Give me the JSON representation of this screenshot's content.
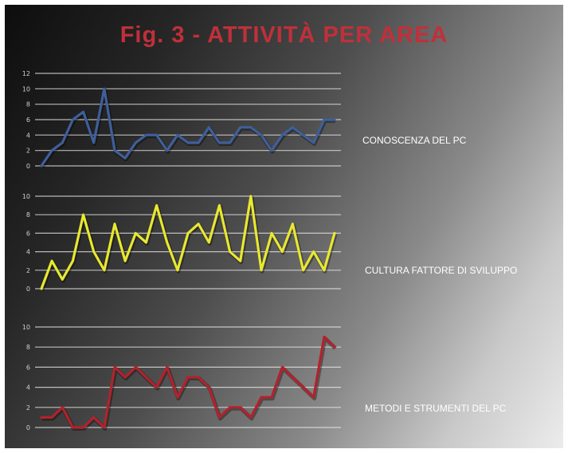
{
  "title": "Fig. 3  -  ATTIVITÀ  PER AREA",
  "chart_data": [
    {
      "type": "line",
      "name": "CONOSCENZA DEL PC",
      "color": "#3f5f9a",
      "ylim": [
        0,
        12
      ],
      "yticks": [
        "0",
        "2",
        "4",
        "6",
        "8",
        "10",
        "12"
      ],
      "grid": true,
      "values": [
        0,
        2,
        3,
        6,
        7,
        3,
        10,
        2,
        1,
        3,
        4,
        4,
        2,
        4,
        3,
        3,
        5,
        3,
        3,
        5,
        5,
        4,
        2,
        4,
        5,
        4,
        3,
        6,
        6
      ]
    },
    {
      "type": "line",
      "name": "CULTURA FATTORE DI SVILUPPO",
      "color": "#e8e830",
      "ylim": [
        0,
        10
      ],
      "yticks": [
        "0",
        "2",
        "4",
        "6",
        "8",
        "10"
      ],
      "grid": true,
      "values": [
        0,
        3,
        1,
        3,
        8,
        4,
        2,
        7,
        3,
        6,
        5,
        9,
        5,
        2,
        6,
        7,
        5,
        9,
        4,
        3,
        10,
        2,
        6,
        4,
        7,
        2,
        4,
        2,
        6
      ]
    },
    {
      "type": "line",
      "name": "METODI E STRUMENTI DEL PC",
      "color": "#b2222c",
      "ylim": [
        0,
        10
      ],
      "yticks": [
        "0",
        "2",
        "4",
        "6",
        "8",
        "10"
      ],
      "grid": true,
      "values": [
        1,
        1,
        2,
        0,
        0,
        1,
        0,
        6,
        5,
        6,
        5,
        4,
        6,
        3,
        5,
        5,
        4,
        1,
        2,
        2,
        1,
        3,
        3,
        6,
        5,
        4,
        3,
        9,
        8
      ]
    }
  ]
}
